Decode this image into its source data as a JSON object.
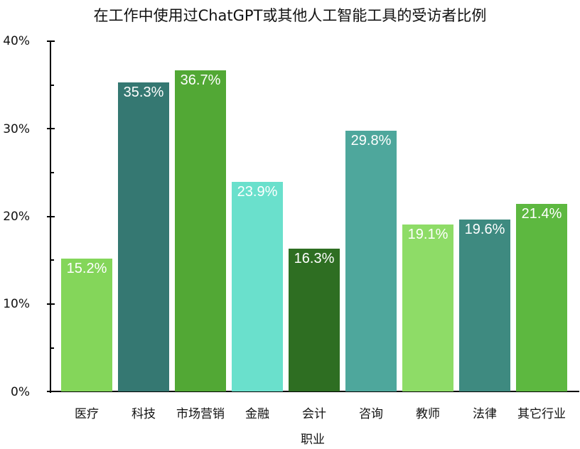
{
  "chart_data": {
    "type": "bar",
    "title": "在工作中使用过ChatGPT或其他人工智能工具的受访者比例",
    "xlabel": "职业",
    "ylabel": "",
    "categories": [
      "医疗",
      "科技",
      "市场营销",
      "金融",
      "会计",
      "咨询",
      "教师",
      "法律",
      "其它行业"
    ],
    "values": [
      15.2,
      35.3,
      36.7,
      23.9,
      16.3,
      29.8,
      19.1,
      19.6,
      21.4
    ],
    "value_labels": [
      "15.2%",
      "35.3%",
      "36.7%",
      "23.9%",
      "16.3%",
      "29.8%",
      "19.1%",
      "19.6%",
      "21.4%"
    ],
    "colors": [
      "#84d65a",
      "#357872",
      "#52a835",
      "#6ae0cc",
      "#2e6e22",
      "#4ea79c",
      "#8edc67",
      "#3e8a80",
      "#5db840"
    ],
    "ylim": [
      0,
      40
    ],
    "yticks": [
      "0%",
      "10%",
      "20%",
      "30%",
      "40%"
    ],
    "grid": false,
    "legend": null
  }
}
